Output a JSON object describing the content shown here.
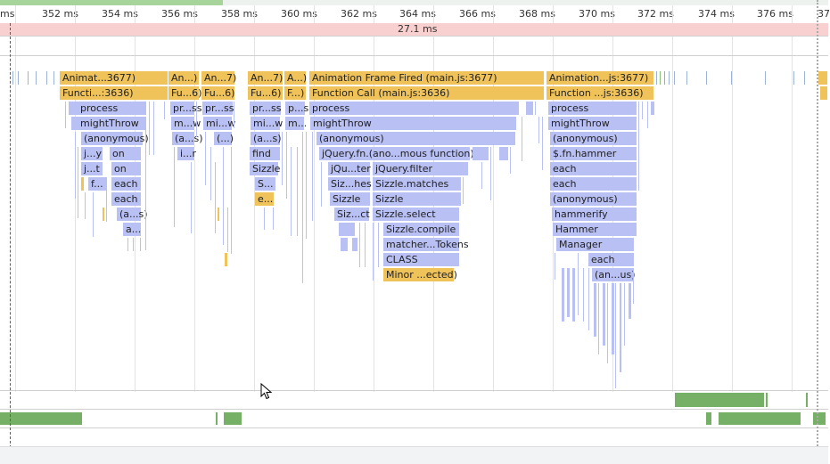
{
  "ruler": {
    "ticks": [
      "ms",
      "352 ms",
      "354 ms",
      "356 ms",
      "358 ms",
      "360 ms",
      "362 ms",
      "364 ms",
      "366 ms",
      "368 ms",
      "370 ms",
      "372 ms",
      "374 ms",
      "376 ms",
      "37"
    ]
  },
  "frame": {
    "duration": "27.1 ms"
  },
  "flame": {
    "row0": [
      "Animat...3677)",
      "An...)",
      "An...7)",
      "An...7)",
      "A...)",
      "Animation Frame Fired (main.js:3677)",
      "Animation...js:3677)"
    ],
    "row1": [
      "Functi...:3636)",
      "Fu...6)",
      "Fu...6)",
      "Fu...6)",
      "F...)",
      "Function Call (main.js:3636)",
      "Function ...js:3636)"
    ],
    "row2": [
      "process",
      "pr...ss",
      "pr...ss",
      "pr...ss",
      "p...s",
      "process",
      "process"
    ],
    "row3": [
      "mightThrow",
      "m...w",
      "mi...w",
      "mi...w",
      "m...",
      "mightThrow",
      "mightThrow"
    ],
    "row4": [
      "(anonymous)",
      "(a...s)",
      "(...)",
      "(a...s)",
      "(anonymous)",
      "(anonymous)"
    ],
    "row5": [
      "j...y",
      "on",
      "i...r",
      "find",
      "jQuery.fn.(ano...mous function)",
      "$.fn.hammer"
    ],
    "row6": [
      "j...t",
      "on",
      "Sizzle",
      "jQu...ter",
      "jQuery.filter",
      "each"
    ],
    "row7": [
      "f...",
      "each",
      "S...",
      "Siz...hes",
      "Sizzle.matches",
      "each"
    ],
    "row8": [
      "each",
      "e...",
      "Sizzle",
      "Sizzle",
      "(anonymous)"
    ],
    "row9": [
      "(a...s)",
      "Siz...ct",
      "Sizzle.select",
      "hammerify"
    ],
    "row10": [
      "a...",
      "Sizzle.compile",
      "Hammer"
    ],
    "row11": [
      "matcher...Tokens",
      "Manager"
    ],
    "row12": [
      "CLASS",
      "each"
    ],
    "row13": [
      "Minor ...ected)",
      "(an...us)"
    ]
  }
}
